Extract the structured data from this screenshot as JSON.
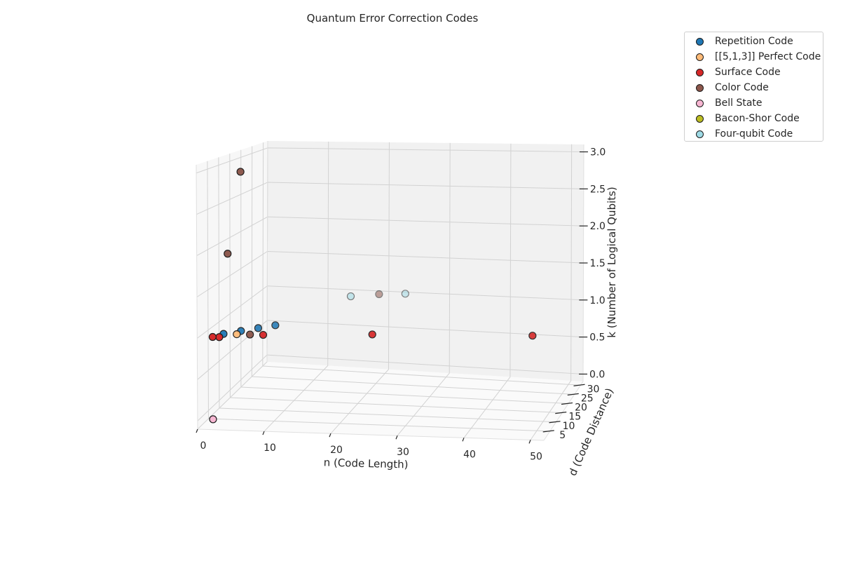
{
  "chart_data": {
    "type": "scatter",
    "projection": "3d",
    "title": "Quantum Error Correction Codes",
    "xlabel": "n (Code Length)",
    "ylabel": "d (Code Distance)",
    "zlabel": "k (Number of Logical Qubits)",
    "xlim": [
      0,
      52
    ],
    "ylim": [
      0,
      32
    ],
    "zlim": [
      -0.1,
      3.1
    ],
    "xticks": [
      "0",
      "10",
      "20",
      "30",
      "40",
      "50"
    ],
    "yticks": [
      "5",
      "10",
      "15",
      "20",
      "25",
      "30"
    ],
    "zticks": [
      "0.0",
      "0.5",
      "1.0",
      "1.5",
      "2.0",
      "2.5",
      "3.0"
    ],
    "grid": true,
    "legend_position": "upper-right",
    "series": [
      {
        "name": "Repetition Code",
        "color": "#1f77b4",
        "points": [
          {
            "x": 3,
            "y": 3,
            "z": 1
          },
          {
            "x": 5,
            "y": 5,
            "z": 1
          },
          {
            "x": 7,
            "y": 7,
            "z": 1
          },
          {
            "x": 9,
            "y": 9,
            "z": 1
          }
        ]
      },
      {
        "name": "[[5,1,3]] Perfect Code",
        "color": "#ffbb78",
        "points": [
          {
            "x": 5,
            "y": 3,
            "z": 1
          }
        ]
      },
      {
        "name": "Surface Code",
        "color": "#d62728",
        "points": [
          {
            "x": 9,
            "y": 3,
            "z": 1
          },
          {
            "x": 25,
            "y": 5,
            "z": 1
          },
          {
            "x": 49,
            "y": 7,
            "z": 1
          },
          {
            "x": 3,
            "y": 1,
            "z": 1
          },
          {
            "x": 2,
            "y": 1,
            "z": 1
          }
        ]
      },
      {
        "name": "Color Code",
        "color": "#8c564b",
        "points": [
          {
            "x": 7,
            "y": 3,
            "z": 1
          },
          {
            "x": 4,
            "y": 2,
            "z": 2
          },
          {
            "x": 6,
            "y": 2,
            "z": 3
          },
          {
            "x": 19,
            "y": 30,
            "z": 1
          }
        ]
      },
      {
        "name": "Bell State",
        "color": "#f7b6d2",
        "points": [
          {
            "x": 2,
            "y": 1,
            "z": 0
          }
        ]
      },
      {
        "name": "Bacon-Shor Code",
        "color": "#bcbd22",
        "points": []
      },
      {
        "name": "Four-qubit Code",
        "color": "#9edae5",
        "points": [
          {
            "x": 15,
            "y": 28,
            "z": 1
          },
          {
            "x": 23,
            "y": 31,
            "z": 1
          }
        ]
      }
    ]
  }
}
